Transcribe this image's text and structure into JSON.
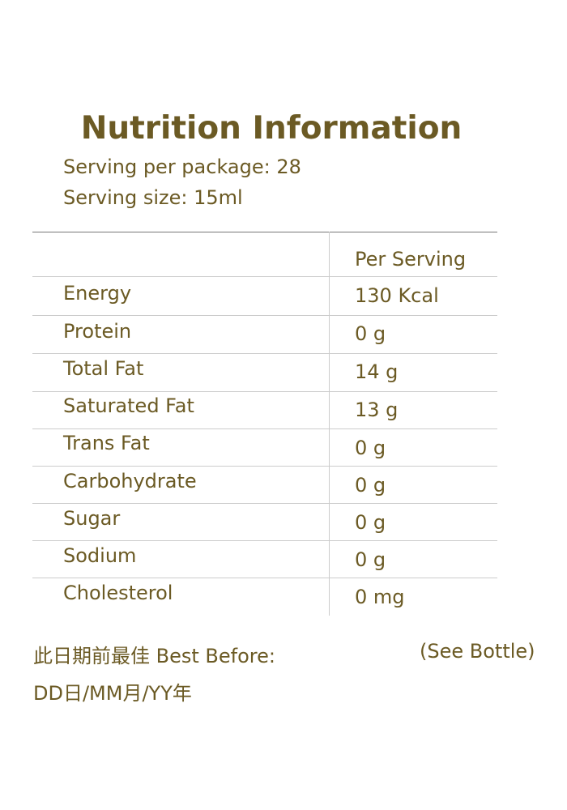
{
  "title": "Nutrition Information",
  "serving_per_package": "Serving per package: 28",
  "serving_size": "Serving size: 15ml",
  "table": {
    "column_header": "Per Serving",
    "rows": [
      {
        "label": "Energy",
        "value": "130 Kcal"
      },
      {
        "label": "Protein",
        "value": "0 g"
      },
      {
        "label": "Total Fat",
        "value": "14 g"
      },
      {
        "label": "Saturated Fat",
        "value": "13 g"
      },
      {
        "label": "Trans Fat",
        "value": "0 g"
      },
      {
        "label": "Carbohydrate",
        "value": "0 g"
      },
      {
        "label": "Sugar",
        "value": "0 g"
      },
      {
        "label": "Sodium",
        "value": "0 g"
      },
      {
        "label": "Cholesterol",
        "value": "0 mg"
      }
    ]
  },
  "best_before": {
    "chinese": "此日期前最佳",
    "english": "Best Before:",
    "note": "(See Bottle)",
    "format": "DD日/MM月/YY年"
  },
  "colors": {
    "text": "#6b5a24",
    "rule": "#cccccc"
  }
}
